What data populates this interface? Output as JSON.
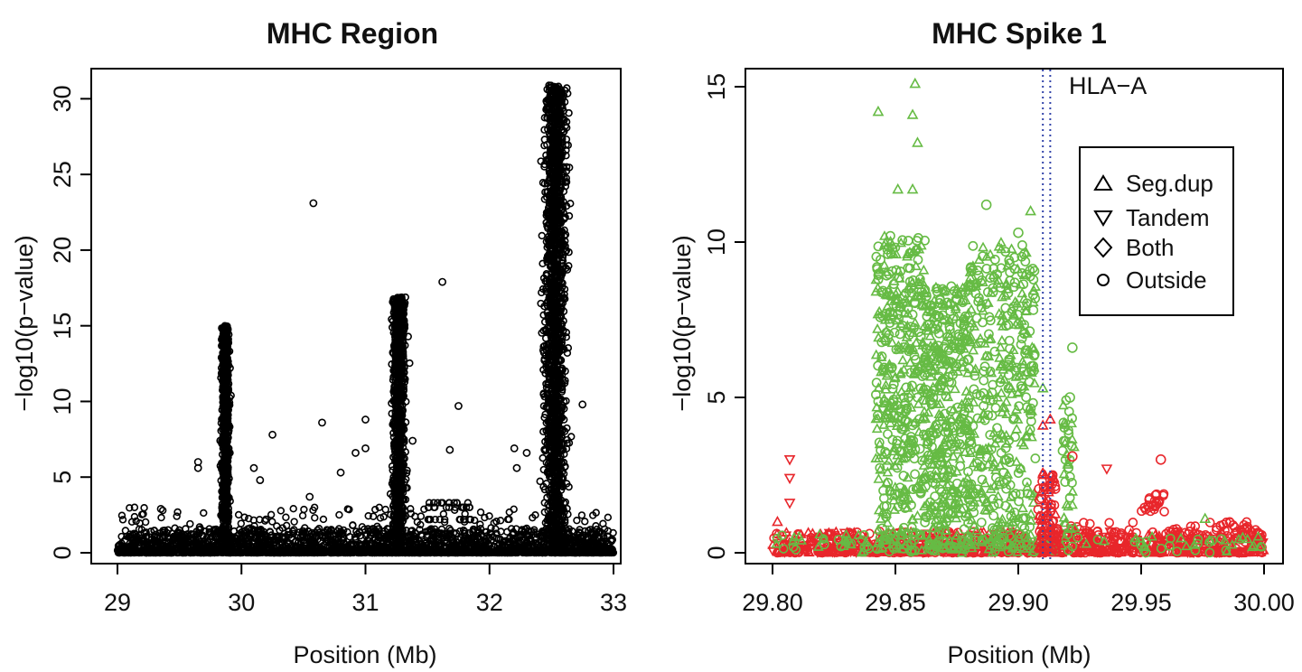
{
  "chart_data": [
    {
      "type": "scatter",
      "title": "MHC Region",
      "xlabel": "Position (Mb)",
      "ylabel": "−log10(p−value)",
      "xlim": [
        29,
        33
      ],
      "ylim": [
        0,
        31
      ],
      "xticks": [
        "29",
        "30",
        "31",
        "32",
        "33"
      ],
      "yticks": [
        "0",
        "5",
        "10",
        "15",
        "20",
        "25",
        "30"
      ],
      "grid": false,
      "marker": "open-circle",
      "color": "#000000",
      "clusters": [
        {
          "x_center": 29.87,
          "x_spread": 0.03,
          "y_max": 15.0
        },
        {
          "x_center": 31.27,
          "x_spread": 0.05,
          "y_max": 16.9
        },
        {
          "x_center": 32.53,
          "x_spread": 0.09,
          "y_max": 30.9
        }
      ],
      "outliers": [
        {
          "x": 30.58,
          "y": 23.1
        },
        {
          "x": 31.62,
          "y": 17.9
        },
        {
          "x": 30.65,
          "y": 8.6
        },
        {
          "x": 31.0,
          "y": 8.8
        },
        {
          "x": 31.75,
          "y": 9.7
        },
        {
          "x": 31.68,
          "y": 6.8
        },
        {
          "x": 30.25,
          "y": 7.8
        },
        {
          "x": 30.1,
          "y": 5.6
        },
        {
          "x": 30.15,
          "y": 4.8
        },
        {
          "x": 29.65,
          "y": 6.0
        },
        {
          "x": 29.65,
          "y": 5.6
        },
        {
          "x": 30.55,
          "y": 3.7
        },
        {
          "x": 30.8,
          "y": 5.3
        },
        {
          "x": 30.92,
          "y": 6.6
        },
        {
          "x": 31.0,
          "y": 6.9
        },
        {
          "x": 32.2,
          "y": 6.9
        },
        {
          "x": 32.3,
          "y": 6.6
        },
        {
          "x": 32.75,
          "y": 9.8
        },
        {
          "x": 31.38,
          "y": 7.4
        },
        {
          "x": 32.22,
          "y": 5.6
        },
        {
          "x": 29.35,
          "y": 2.9
        }
      ]
    },
    {
      "type": "scatter",
      "title": "MHC Spike 1",
      "xlabel": "Position (Mb)",
      "ylabel": "−log10(p−value)",
      "xlim": [
        29.8,
        30.0
      ],
      "ylim": [
        0,
        15
      ],
      "xticks": [
        "29.80",
        "29.85",
        "29.90",
        "29.95",
        "30.00"
      ],
      "yticks": [
        "0",
        "5",
        "10",
        "15"
      ],
      "grid": false,
      "annotation": {
        "text": "HLA−A",
        "x_lines": [
          29.91,
          29.913
        ],
        "color": "#3344aa"
      },
      "legend": {
        "placement": "top-right",
        "entries": [
          {
            "label": "Seg.dup",
            "marker": "triangle-up"
          },
          {
            "label": "Tandem",
            "marker": "triangle-down"
          },
          {
            "label": "Both",
            "marker": "diamond"
          },
          {
            "label": "Outside",
            "marker": "circle"
          }
        ]
      },
      "colors": {
        "green": "#66bb44",
        "red": "#e8262b"
      },
      "green_points": [
        {
          "x": 29.843,
          "y": 14.2,
          "m": "triangle-up"
        },
        {
          "x": 29.858,
          "y": 15.1,
          "m": "triangle-up"
        },
        {
          "x": 29.857,
          "y": 14.1,
          "m": "triangle-up"
        },
        {
          "x": 29.859,
          "y": 13.2,
          "m": "triangle-up"
        },
        {
          "x": 29.851,
          "y": 11.7,
          "m": "triangle-up"
        },
        {
          "x": 29.857,
          "y": 11.7,
          "m": "triangle-up"
        },
        {
          "x": 29.887,
          "y": 11.2,
          "m": "circle"
        },
        {
          "x": 29.905,
          "y": 11.0,
          "m": "triangle-up"
        },
        {
          "x": 29.9,
          "y": 10.3,
          "m": "circle"
        },
        {
          "x": 29.922,
          "y": 6.6,
          "m": "circle"
        },
        {
          "x": 29.91,
          "y": 5.3,
          "m": "triangle-up"
        },
        {
          "x": 29.921,
          "y": 5.0,
          "m": "circle"
        },
        {
          "x": 29.976,
          "y": 1.1,
          "m": "triangle-up"
        }
      ],
      "red_points": [
        {
          "x": 29.807,
          "y": 3.0,
          "m": "triangle-down"
        },
        {
          "x": 29.807,
          "y": 2.4,
          "m": "triangle-down"
        },
        {
          "x": 29.807,
          "y": 1.6,
          "m": "triangle-down"
        },
        {
          "x": 29.802,
          "y": 1.0,
          "m": "triangle-up"
        },
        {
          "x": 29.913,
          "y": 4.3,
          "m": "triangle-up"
        },
        {
          "x": 29.91,
          "y": 4.1,
          "m": "triangle-up"
        },
        {
          "x": 29.936,
          "y": 2.7,
          "m": "triangle-down"
        },
        {
          "x": 29.958,
          "y": 3.0,
          "m": "circle"
        },
        {
          "x": 29.922,
          "y": 3.1,
          "m": "circle"
        }
      ]
    }
  ]
}
